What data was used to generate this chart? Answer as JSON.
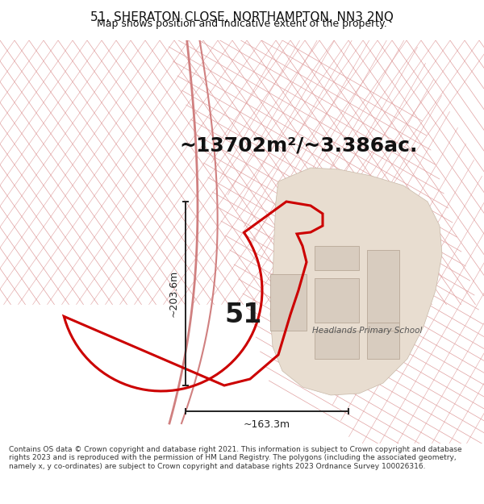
{
  "title_line1": "51, SHERATON CLOSE, NORTHAMPTON, NN3 2NQ",
  "title_line2": "Map shows position and indicative extent of the property.",
  "area_text": "~13702m²/~3.386ac.",
  "label_number": "51",
  "school_label": "Headlands Primary School",
  "dim_vertical": "~203.6m",
  "dim_horizontal": "~163.3m",
  "footer_text": "Contains OS data © Crown copyright and database right 2021. This information is subject to Crown copyright and database rights 2023 and is reproduced with the permission of HM Land Registry. The polygons (including the associated geometry, namely x, y co-ordinates) are subject to Crown copyright and database rights 2023 Ordnance Survey 100026316.",
  "bg_color": "#ffffff",
  "map_bg_color": "#f8f4f4",
  "red_line_color": "#cc0000",
  "street_line_color": "#e0a0a0",
  "street_line_color2": "#d08080",
  "dim_line_color": "#222222",
  "title_color": "#111111",
  "area_text_color": "#111111",
  "school_fill": "#e8ddd0",
  "school_edge": "#c8b8a8",
  "title_fontsize": 11,
  "subtitle_fontsize": 9,
  "area_fontsize": 18,
  "label_fontsize": 24,
  "dim_fontsize": 9,
  "school_fontsize": 7.5,
  "footer_fontsize": 6.5
}
